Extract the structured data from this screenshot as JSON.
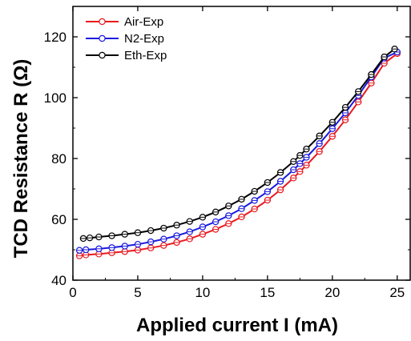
{
  "chart_data": {
    "type": "line",
    "xlabel": "Applied current I (mA)",
    "ylabel": "TCD Resistance R (Ω)",
    "xlim": [
      0,
      26
    ],
    "ylim": [
      40,
      130
    ],
    "xticks": [
      0,
      5,
      10,
      15,
      20,
      25
    ],
    "yticks": [
      40,
      60,
      80,
      100,
      120
    ],
    "grid": false,
    "legend_position": "top-left",
    "series": [
      {
        "name": "Air-Exp",
        "color": "#e8191f",
        "marker": "open-circle",
        "x": [
          0.5,
          1,
          2,
          3,
          4,
          5,
          6,
          7,
          8,
          9,
          10,
          11,
          12,
          13,
          14,
          15,
          16,
          17,
          17.5,
          18,
          19,
          20,
          21,
          22,
          23,
          24,
          25
        ],
        "y": [
          48.0,
          48.3,
          48.6,
          49.0,
          49.4,
          49.9,
          50.6,
          51.4,
          52.4,
          53.6,
          55.1,
          56.7,
          58.6,
          60.8,
          63.4,
          66.3,
          69.7,
          73.6,
          75.7,
          77.8,
          82.3,
          87.3,
          92.7,
          98.6,
          104.8,
          111.3,
          114.5
        ]
      },
      {
        "name": "N2-Exp",
        "color": "#1a1adf",
        "marker": "open-circle",
        "x": [
          0.5,
          1,
          2,
          3,
          4,
          5,
          6,
          7,
          8,
          9,
          10,
          11,
          12,
          13,
          14,
          15,
          16,
          17,
          17.5,
          18,
          19,
          20,
          21,
          22,
          23,
          24,
          25
        ],
        "y": [
          49.8,
          50.0,
          50.3,
          50.7,
          51.2,
          51.8,
          52.6,
          53.5,
          54.6,
          55.9,
          57.5,
          59.2,
          61.2,
          63.5,
          66.2,
          69.1,
          72.5,
          76.3,
          78.3,
          80.4,
          84.9,
          89.8,
          95.0,
          100.7,
          106.8,
          113.0,
          115.0
        ]
      },
      {
        "name": "Eth-Exp",
        "color": "#000000",
        "marker": "open-circle",
        "x": [
          0.8,
          1.3,
          2,
          3,
          4,
          5,
          6,
          7,
          8,
          9,
          10,
          11,
          12,
          13,
          14,
          15,
          16,
          17,
          17.5,
          18,
          19,
          20,
          21,
          22,
          23,
          24,
          24.8
        ],
        "y": [
          53.7,
          53.9,
          54.2,
          54.6,
          55.1,
          55.6,
          56.3,
          57.1,
          58.1,
          59.3,
          60.7,
          62.4,
          64.4,
          66.6,
          69.2,
          72.1,
          75.4,
          79.0,
          81.0,
          83.1,
          87.4,
          91.9,
          96.8,
          102.0,
          107.6,
          113.4,
          116.0
        ]
      }
    ]
  }
}
